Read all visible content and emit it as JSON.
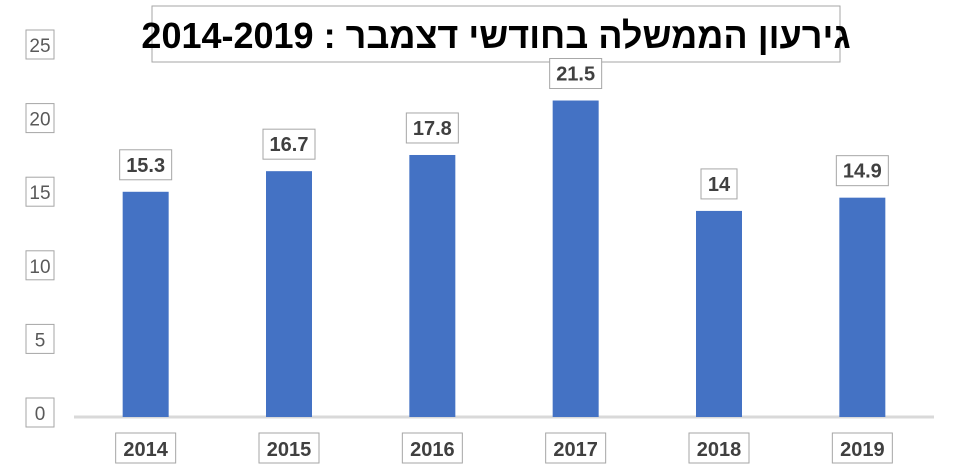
{
  "chart_data": {
    "type": "bar",
    "title": "גירעון הממשלה בחודשי דצמבר : 2014-2019",
    "categories": [
      "2014",
      "2015",
      "2016",
      "2017",
      "2018",
      "2019"
    ],
    "values": [
      15.3,
      16.7,
      17.8,
      21.5,
      14,
      14.9
    ],
    "data_labels": [
      "15.3",
      "16.7",
      "17.8",
      "21.5",
      "14",
      "14.9"
    ],
    "y_ticks": [
      "0",
      "5",
      "10",
      "15",
      "20",
      "25"
    ],
    "ylim": [
      0,
      25
    ],
    "xlabel": "",
    "ylabel": "",
    "grid": false,
    "legend": "none",
    "colors": {
      "bar": "#4472C4",
      "axis": "#d9d9d9",
      "label_border": "#a6a6a6"
    }
  }
}
